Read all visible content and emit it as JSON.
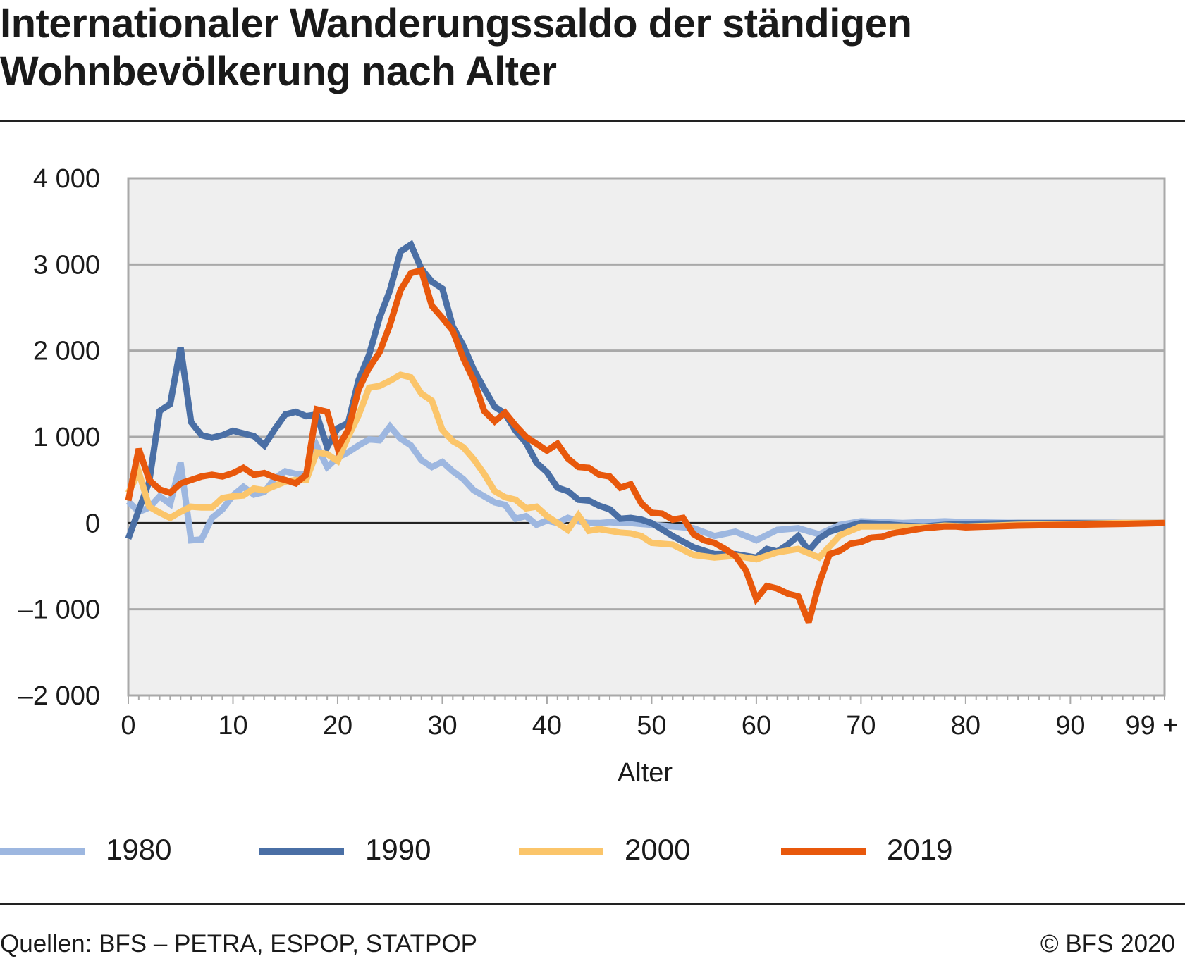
{
  "title": "Internationaler Wanderungssaldo der ständigen Wohnbevölkerung nach Alter",
  "source": "Quellen: BFS – PETRA, ESPOP, STATPOP",
  "copyright": "© BFS 2020",
  "colors": {
    "1980": "#9db7e0",
    "1990": "#4a6fa5",
    "2000": "#fbc56a",
    "2019": "#e8580c",
    "plot_bg": "#efefef",
    "grid": "#a9a9a9"
  },
  "legend": [
    {
      "label": "1980",
      "color": "#9db7e0"
    },
    {
      "label": "1990",
      "color": "#4a6fa5"
    },
    {
      "label": "2000",
      "color": "#fbc56a"
    },
    {
      "label": "2019",
      "color": "#e8580c"
    }
  ],
  "chart_data": {
    "type": "line",
    "title": "Internationaler Wanderungssaldo der ständigen Wohnbevölkerung nach Alter",
    "xlabel": "Alter",
    "ylabel": "",
    "xlim": [
      0,
      99
    ],
    "ylim": [
      -2000,
      4000
    ],
    "grid": true,
    "legend_position": "bottom",
    "x_ticks": [
      {
        "value": 0,
        "label": "0"
      },
      {
        "value": 10,
        "label": "10"
      },
      {
        "value": 20,
        "label": "20"
      },
      {
        "value": 30,
        "label": "30"
      },
      {
        "value": 40,
        "label": "40"
      },
      {
        "value": 50,
        "label": "50"
      },
      {
        "value": 60,
        "label": "60"
      },
      {
        "value": 70,
        "label": "70"
      },
      {
        "value": 80,
        "label": "80"
      },
      {
        "value": 90,
        "label": "90"
      },
      {
        "value": 99,
        "label": "99 +"
      }
    ],
    "y_ticks": [
      {
        "value": 4000,
        "label": "4 000"
      },
      {
        "value": 3000,
        "label": "3 000"
      },
      {
        "value": 2000,
        "label": "2 000"
      },
      {
        "value": 1000,
        "label": "1 000"
      },
      {
        "value": 0,
        "label": "0"
      },
      {
        "value": -1000,
        "label": "–1 000"
      },
      {
        "value": -2000,
        "label": "–2 000"
      }
    ],
    "series": [
      {
        "name": "1980",
        "x": [
          0,
          1,
          2,
          3,
          4,
          5,
          6,
          7,
          8,
          9,
          10,
          11,
          12,
          13,
          14,
          15,
          16,
          17,
          18,
          19,
          20,
          21,
          22,
          23,
          24,
          25,
          26,
          27,
          28,
          29,
          30,
          31,
          32,
          33,
          34,
          35,
          36,
          37,
          38,
          39,
          40,
          41,
          42,
          43,
          44,
          45,
          46,
          47,
          48,
          49,
          50,
          52,
          54,
          56,
          58,
          60,
          62,
          64,
          66,
          68,
          70,
          72,
          74,
          76,
          78,
          80,
          85,
          90,
          95,
          99
        ],
        "y": [
          250,
          130,
          180,
          310,
          220,
          700,
          -200,
          -190,
          60,
          160,
          320,
          420,
          330,
          360,
          520,
          600,
          570,
          560,
          900,
          650,
          760,
          820,
          900,
          970,
          960,
          1120,
          980,
          900,
          730,
          650,
          710,
          600,
          510,
          380,
          310,
          240,
          210,
          50,
          80,
          -20,
          30,
          0,
          60,
          20,
          0,
          0,
          10,
          0,
          0,
          -10,
          -20,
          -40,
          -60,
          -150,
          -100,
          -200,
          -80,
          -60,
          -130,
          -20,
          20,
          10,
          0,
          10,
          20,
          10,
          0,
          0,
          0,
          0
        ]
      },
      {
        "name": "1990",
        "x": [
          0,
          1,
          2,
          3,
          4,
          5,
          6,
          7,
          8,
          9,
          10,
          11,
          12,
          13,
          14,
          15,
          16,
          17,
          18,
          19,
          20,
          21,
          22,
          23,
          24,
          25,
          26,
          27,
          28,
          29,
          30,
          31,
          32,
          33,
          34,
          35,
          36,
          37,
          38,
          39,
          40,
          41,
          42,
          43,
          44,
          45,
          46,
          47,
          48,
          49,
          50,
          52,
          54,
          56,
          58,
          60,
          61,
          62,
          63,
          64,
          65,
          66,
          67,
          68,
          70,
          72,
          74,
          76,
          78,
          80,
          85,
          90,
          95,
          99
        ],
        "y": [
          -180,
          150,
          480,
          1300,
          1380,
          2040,
          1170,
          1020,
          990,
          1020,
          1070,
          1040,
          1010,
          900,
          1090,
          1260,
          1290,
          1240,
          1260,
          880,
          1100,
          1160,
          1660,
          1950,
          2380,
          2700,
          3150,
          3230,
          2950,
          2800,
          2720,
          2280,
          2060,
          1780,
          1560,
          1350,
          1270,
          1070,
          930,
          700,
          590,
          410,
          370,
          270,
          260,
          200,
          160,
          50,
          60,
          40,
          0,
          -150,
          -280,
          -360,
          -360,
          -400,
          -300,
          -330,
          -250,
          -150,
          -320,
          -180,
          -100,
          -60,
          0,
          -10,
          -30,
          -40,
          -20,
          -10,
          0,
          0,
          0,
          0
        ]
      },
      {
        "name": "2000",
        "x": [
          0,
          1,
          2,
          3,
          4,
          5,
          6,
          7,
          8,
          9,
          10,
          11,
          12,
          13,
          14,
          15,
          16,
          17,
          18,
          19,
          20,
          21,
          22,
          23,
          24,
          25,
          26,
          27,
          28,
          29,
          30,
          31,
          32,
          33,
          34,
          35,
          36,
          37,
          38,
          39,
          40,
          41,
          42,
          43,
          44,
          45,
          46,
          47,
          48,
          49,
          50,
          52,
          54,
          56,
          58,
          60,
          62,
          64,
          66,
          68,
          70,
          72,
          74,
          76,
          78,
          80,
          85,
          90,
          95,
          99
        ],
        "y": [
          350,
          590,
          190,
          120,
          60,
          130,
          190,
          180,
          180,
          290,
          310,
          320,
          400,
          380,
          430,
          480,
          500,
          500,
          820,
          800,
          720,
          1000,
          1250,
          1570,
          1590,
          1650,
          1720,
          1690,
          1500,
          1420,
          1080,
          950,
          880,
          740,
          570,
          370,
          300,
          270,
          170,
          190,
          80,
          0,
          -80,
          90,
          -90,
          -70,
          -90,
          -110,
          -120,
          -150,
          -230,
          -250,
          -370,
          -400,
          -380,
          -420,
          -340,
          -300,
          -400,
          -140,
          -40,
          -40,
          -40,
          -50,
          -30,
          -40,
          -20,
          -10,
          0,
          0
        ]
      },
      {
        "name": "2019",
        "x": [
          0,
          1,
          2,
          3,
          4,
          5,
          6,
          7,
          8,
          9,
          10,
          11,
          12,
          13,
          14,
          15,
          16,
          17,
          18,
          19,
          20,
          21,
          22,
          23,
          24,
          25,
          26,
          27,
          28,
          29,
          30,
          31,
          32,
          33,
          34,
          35,
          36,
          37,
          38,
          39,
          40,
          41,
          42,
          43,
          44,
          45,
          46,
          47,
          48,
          49,
          50,
          51,
          52,
          53,
          54,
          55,
          56,
          57,
          58,
          59,
          60,
          61,
          62,
          63,
          64,
          65,
          66,
          67,
          68,
          69,
          70,
          71,
          72,
          73,
          74,
          75,
          76,
          77,
          78,
          79,
          80,
          85,
          90,
          95,
          99
        ],
        "y": [
          260,
          860,
          500,
          390,
          350,
          460,
          500,
          540,
          560,
          540,
          580,
          640,
          560,
          580,
          530,
          500,
          460,
          560,
          1320,
          1290,
          870,
          1080,
          1550,
          1800,
          1980,
          2300,
          2700,
          2900,
          2930,
          2520,
          2380,
          2230,
          1910,
          1660,
          1300,
          1180,
          1280,
          1130,
          1000,
          920,
          840,
          920,
          750,
          650,
          640,
          560,
          540,
          410,
          450,
          230,
          120,
          110,
          40,
          60,
          -130,
          -200,
          -230,
          -300,
          -380,
          -550,
          -880,
          -730,
          -760,
          -820,
          -850,
          -1150,
          -700,
          -360,
          -320,
          -240,
          -220,
          -170,
          -160,
          -120,
          -100,
          -80,
          -60,
          -50,
          -40,
          -40,
          -50,
          -30,
          -20,
          -10,
          0
        ]
      }
    ]
  }
}
